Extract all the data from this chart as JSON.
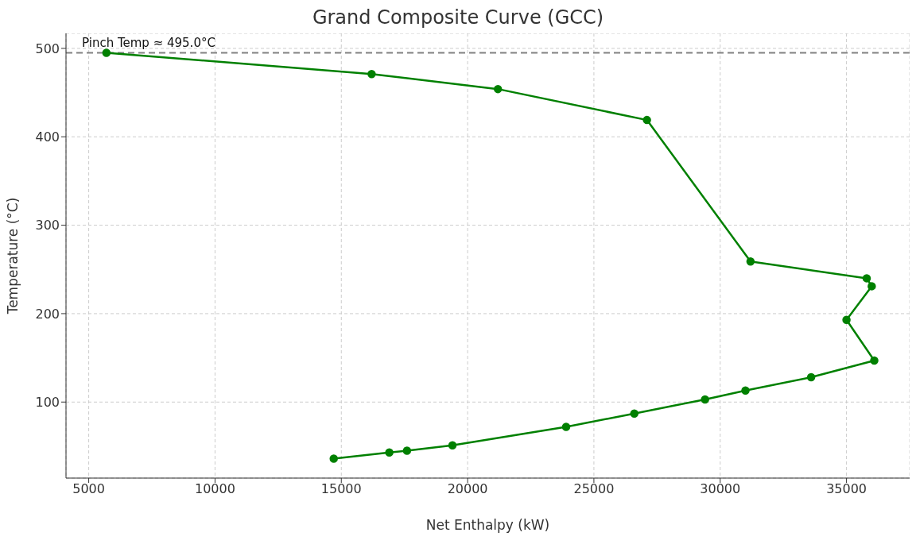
{
  "chart_data": {
    "type": "line",
    "title": "Grand Composite Curve (GCC)",
    "xlabel": "Net Enthalpy (kW)",
    "ylabel": "Temperature (°C)",
    "series": [
      {
        "color": "#008000",
        "x": [
          5700,
          16200,
          21200,
          27100,
          31200,
          35800,
          36000,
          35000,
          36100,
          33600,
          31000,
          29400,
          26600,
          23900,
          19400,
          17600,
          16900,
          14700
        ],
        "values": [
          495,
          471,
          454,
          419,
          259,
          240,
          231,
          193,
          147,
          128,
          113,
          103,
          87,
          72,
          51,
          45,
          43,
          36
        ]
      }
    ],
    "xlim": [
      4100,
      37500
    ],
    "xticks": [
      5000,
      10000,
      15000,
      20000,
      25000,
      30000,
      35000
    ],
    "ylim": [
      14,
      517
    ],
    "yticks": [
      100,
      200,
      300,
      400,
      500
    ],
    "ref_lines": [
      {
        "axis": "y",
        "value": 495,
        "label": "Pinch Temp ≈ 495.0°C",
        "color": "#808080",
        "line_style": "dashed"
      }
    ],
    "grid": true,
    "legend": false,
    "marker": "circle",
    "line_style": "solid"
  }
}
